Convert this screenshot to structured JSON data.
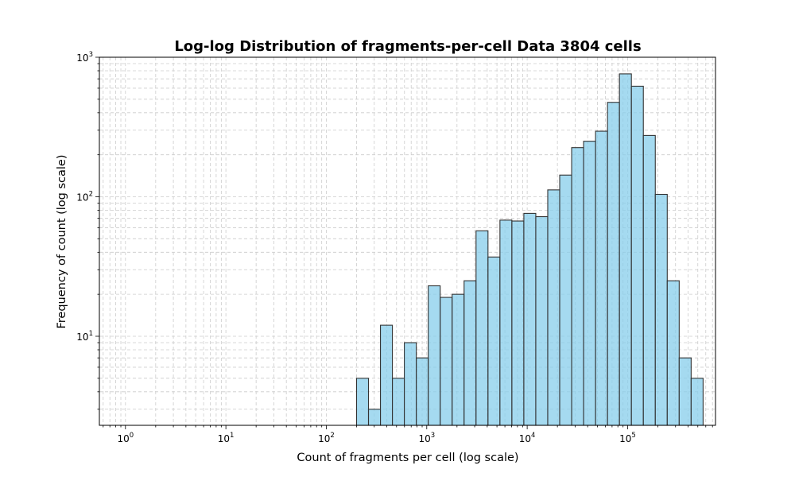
{
  "chart_data": {
    "type": "bar",
    "title": "Log-log Distribution of fragments-per-cell Data 3804 cells",
    "xlabel": "Count of fragments per cell (log scale)",
    "ylabel": "Frequency of count (log scale)",
    "xscale": "log",
    "yscale": "log",
    "xlim": [
      0.55,
      750000
    ],
    "ylim": [
      2.3,
      1000
    ],
    "grid": true,
    "bar_color": "#87CEEB",
    "bar_edge_color": "#333333",
    "x_ticks": [
      {
        "base": "10",
        "exp": "0",
        "value": 1
      },
      {
        "base": "10",
        "exp": "1",
        "value": 10
      },
      {
        "base": "10",
        "exp": "2",
        "value": 100
      },
      {
        "base": "10",
        "exp": "3",
        "value": 1000
      },
      {
        "base": "10",
        "exp": "4",
        "value": 10000
      },
      {
        "base": "10",
        "exp": "5",
        "value": 100000
      }
    ],
    "y_ticks": [
      {
        "base": "10",
        "exp": "1",
        "value": 10
      },
      {
        "base": "10",
        "exp": "2",
        "value": 100
      },
      {
        "base": "10",
        "exp": "3",
        "value": 1000
      }
    ],
    "bins": [
      {
        "x0": 200,
        "x1": 263,
        "count": 5
      },
      {
        "x0": 263,
        "x1": 346,
        "count": 3
      },
      {
        "x0": 346,
        "x1": 455,
        "count": 12
      },
      {
        "x0": 455,
        "x1": 598,
        "count": 5
      },
      {
        "x0": 598,
        "x1": 787,
        "count": 9
      },
      {
        "x0": 787,
        "x1": 1035,
        "count": 7
      },
      {
        "x0": 1035,
        "x1": 1361,
        "count": 23
      },
      {
        "x0": 1361,
        "x1": 1790,
        "count": 19
      },
      {
        "x0": 1790,
        "x1": 2354,
        "count": 20
      },
      {
        "x0": 2354,
        "x1": 3096,
        "count": 25
      },
      {
        "x0": 3096,
        "x1": 4072,
        "count": 57
      },
      {
        "x0": 4072,
        "x1": 5355,
        "count": 37
      },
      {
        "x0": 5355,
        "x1": 7043,
        "count": 68
      },
      {
        "x0": 7043,
        "x1": 9263,
        "count": 67
      },
      {
        "x0": 9263,
        "x1": 12182,
        "count": 76
      },
      {
        "x0": 12182,
        "x1": 16022,
        "count": 72
      },
      {
        "x0": 16022,
        "x1": 21072,
        "count": 112
      },
      {
        "x0": 21072,
        "x1": 27713,
        "count": 143
      },
      {
        "x0": 27713,
        "x1": 36448,
        "count": 225
      },
      {
        "x0": 36448,
        "x1": 47936,
        "count": 250
      },
      {
        "x0": 47936,
        "x1": 63045,
        "count": 295
      },
      {
        "x0": 63045,
        "x1": 82916,
        "count": 475
      },
      {
        "x0": 82916,
        "x1": 109051,
        "count": 760
      },
      {
        "x0": 109051,
        "x1": 143422,
        "count": 620
      },
      {
        "x0": 143422,
        "x1": 188627,
        "count": 275
      },
      {
        "x0": 188627,
        "x1": 248081,
        "count": 104
      },
      {
        "x0": 248081,
        "x1": 326274,
        "count": 25
      },
      {
        "x0": 326274,
        "x1": 429112,
        "count": 7
      },
      {
        "x0": 429112,
        "x1": 564362,
        "count": 5
      }
    ]
  }
}
